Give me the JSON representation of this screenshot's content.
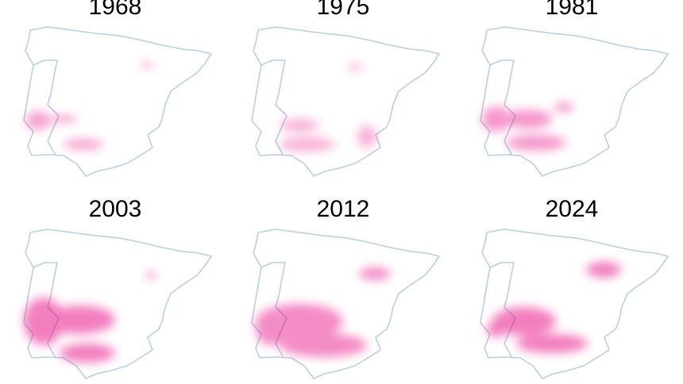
{
  "panels": [
    {
      "title": "1968"
    },
    {
      "title": "1975"
    },
    {
      "title": "1981"
    },
    {
      "title": "2003"
    },
    {
      "title": "2012"
    },
    {
      "title": "2024"
    }
  ]
}
